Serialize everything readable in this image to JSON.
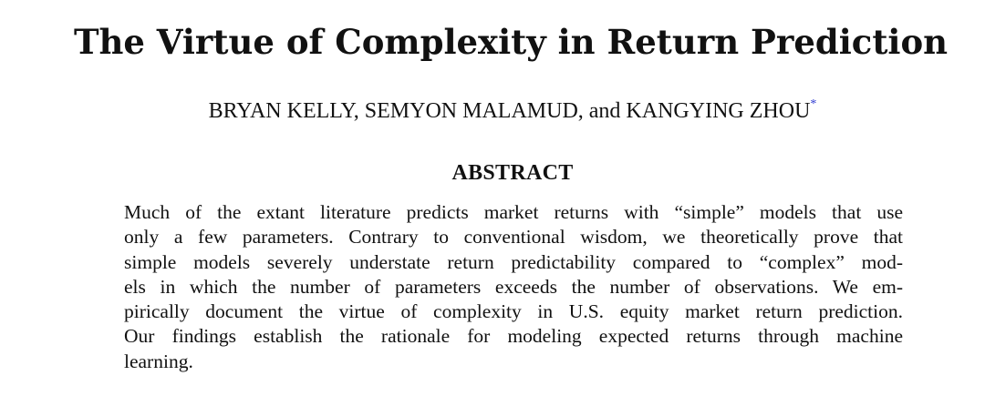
{
  "paper": {
    "title": "The Virtue of Complexity in Return Prediction",
    "authors": "BRYAN KELLY, SEMYON MALAMUD, and KANGYING ZHOU",
    "footnote_marker": "*",
    "abstract_heading": "ABSTRACT",
    "abstract_lines": [
      "Much of the extant literature predicts market returns with “simple” models that use",
      "only a few parameters. Contrary to conventional wisdom, we theoretically prove that",
      "simple models severely understate return predictability compared to “complex” mod-",
      "els in which the number of parameters exceeds the number of observations. We em-",
      "pirically document the virtue of complexity in U.S. equity market return prediction.",
      "Our findings establish the rationale for modeling expected returns through machine",
      "learning."
    ],
    "colors": {
      "text": "#111111",
      "footnote_marker": "#2f3bd1",
      "background": "#ffffff"
    }
  }
}
